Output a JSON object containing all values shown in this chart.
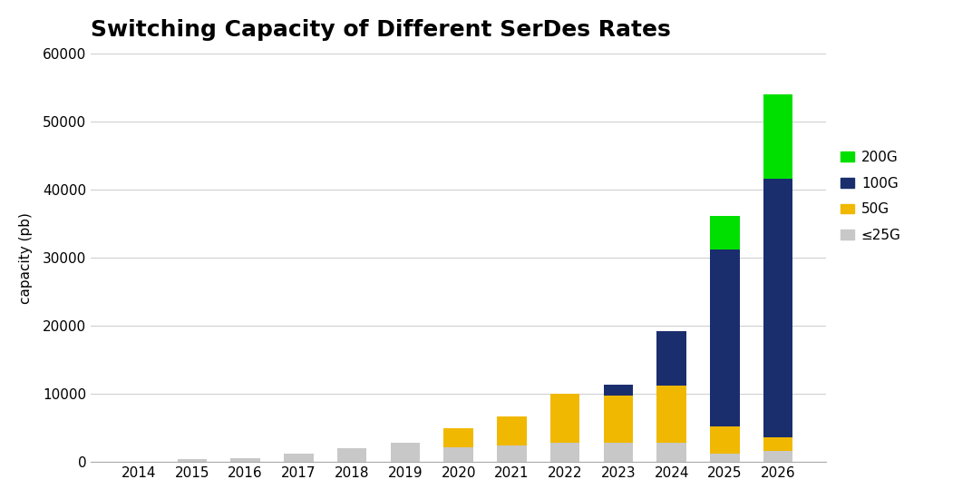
{
  "title": "Switching Capacity of Different SerDes Rates",
  "ylabel": "capacity (pb)",
  "years": [
    2014,
    2015,
    2016,
    2017,
    2018,
    2019,
    2020,
    2021,
    2022,
    2023,
    2024,
    2025,
    2026
  ],
  "le25g": [
    100,
    400,
    600,
    1200,
    2000,
    2800,
    2200,
    2500,
    2800,
    2800,
    2800,
    1200,
    1600
  ],
  "g50": [
    0,
    0,
    0,
    0,
    0,
    0,
    2800,
    4200,
    7200,
    7000,
    8400,
    4000,
    2000
  ],
  "g100": [
    0,
    0,
    0,
    0,
    0,
    0,
    0,
    0,
    0,
    1600,
    8000,
    26000,
    38000
  ],
  "g200": [
    0,
    0,
    0,
    0,
    0,
    0,
    0,
    0,
    0,
    0,
    0,
    5000,
    12400
  ],
  "colors": {
    "le25g": "#c8c8c8",
    "g50": "#f0b800",
    "g100": "#1a2e6e",
    "g200": "#00e000"
  },
  "legend_labels": [
    "200G",
    "100G",
    "50G",
    "≤25G"
  ],
  "ylim": [
    0,
    60000
  ],
  "yticks": [
    0,
    10000,
    20000,
    30000,
    40000,
    50000,
    60000
  ],
  "background_color": "#ffffff",
  "title_fontsize": 18,
  "axis_fontsize": 11,
  "tick_fontsize": 11
}
